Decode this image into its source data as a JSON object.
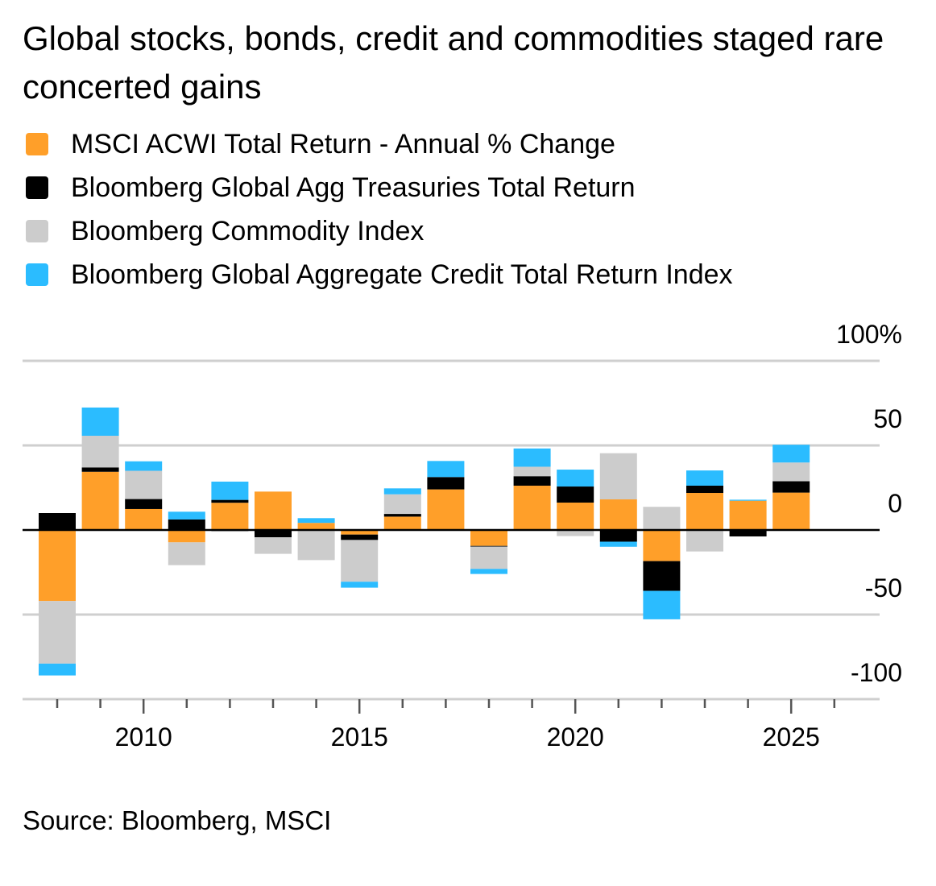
{
  "chart_data": {
    "type": "bar",
    "stacked": true,
    "title": "Global stocks, bonds, credit and commodities staged rare concerted gains",
    "source": "Source: Bloomberg, MSCI",
    "categories": [
      2008,
      2009,
      2010,
      2011,
      2012,
      2013,
      2014,
      2015,
      2016,
      2017,
      2018,
      2019,
      2020,
      2021,
      2022,
      2023,
      2024,
      2025
    ],
    "series": [
      {
        "name": "MSCI ACWI Total Return - Annual % Change",
        "color": "#ff9f29",
        "values": [
          -42,
          34.4,
          12.4,
          -7.3,
          16.1,
          22.7,
          4.2,
          -2.7,
          7.9,
          24,
          -9.4,
          26.2,
          16.2,
          18.1,
          -18.4,
          21.9,
          17.3,
          22.1
        ]
      },
      {
        "name": "Bloomberg Global Agg Treasuries Total Return",
        "color": "#000000",
        "values": [
          10,
          2.6,
          5.9,
          6.2,
          1.7,
          -4.3,
          0,
          -3.2,
          1.6,
          7.3,
          -0.4,
          5.6,
          9.5,
          -6.9,
          -17.6,
          4.3,
          -3.8,
          6.7
        ]
      },
      {
        "name": "Bloomberg Commodity Index",
        "color": "#cccccc",
        "values": [
          -37,
          18.7,
          16.7,
          -13.5,
          -1,
          -9.8,
          -17.8,
          -24.7,
          11.6,
          0,
          -13.2,
          5.6,
          -3.6,
          27.3,
          13.7,
          -12.7,
          0,
          11.1
        ]
      },
      {
        "name": "Bloomberg Global Aggregate Credit Total Return Index",
        "color": "#2bbcff",
        "values": [
          -7,
          16.7,
          5.6,
          4.6,
          10.8,
          0,
          2.8,
          -3.5,
          3.5,
          9.5,
          -3,
          10.8,
          10,
          -3,
          -16.8,
          9,
          0.6,
          10.5
        ]
      }
    ],
    "ylim": [
      -100,
      100
    ],
    "yticks": [
      100,
      50,
      0,
      -50,
      -100
    ],
    "ytick_labels": [
      "100%",
      "50",
      "0",
      "-50",
      "-100"
    ],
    "xticks": [
      2010,
      2015,
      2020,
      2025
    ],
    "xtick_labels": [
      "2010",
      "2015",
      "2020",
      "2025"
    ],
    "xlim": [
      2007.2,
      2027.1
    ],
    "grid": true,
    "legend": "top"
  }
}
